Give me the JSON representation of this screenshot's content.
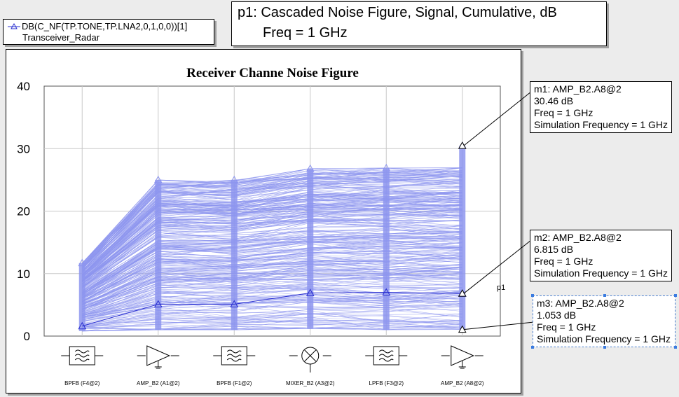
{
  "legend": {
    "expression": "DB(C_NF(TP.TONE,TP.LNA2,0,1,0,0))[1]",
    "document": "Transceiver_Radar"
  },
  "plot_title": {
    "line1": "p1: Cascaded Noise Figure, Signal, Cumulative, dB",
    "line2": "Freq = 1 GHz"
  },
  "colors": {
    "sweep_lines": "#8d95ef",
    "main_trace": "#2a2fd0",
    "grid": "#c8c8c8",
    "background": "#ececec"
  },
  "chart_data": {
    "type": "line",
    "title": "Receiver Channe Noise Figure",
    "ylim": [
      0,
      40
    ],
    "yticks": [
      0,
      10,
      20,
      30,
      40
    ],
    "grid": true,
    "categories": [
      "BPFB (F4@2)",
      "AMP_B2 (A1@2)",
      "BPFB (F1@2)",
      "MIXER_B2 (A3@2)",
      "LPFB (F3@2)",
      "AMP_B2 (A8@2)"
    ],
    "category_icons": [
      "bandpass-filter-icon",
      "amplifier-icon",
      "bandpass-filter-icon",
      "mixer-icon",
      "lowpass-filter-icon",
      "amplifier-icon"
    ],
    "series": [
      {
        "values": [
          1.6,
          5.1,
          5.1,
          6.9,
          7.0,
          6.8
        ]
      }
    ],
    "monte_carlo_band": {
      "min": [
        0.8,
        1.0,
        1.0,
        1.2,
        1.0,
        1.053
      ],
      "max": [
        11.7,
        25.0,
        25.0,
        26.8,
        26.9,
        30.46
      ]
    },
    "trace_label": "p1",
    "markers": [
      {
        "id": "m1",
        "x": "AMP_B2 (A8@2)",
        "y": 30.46,
        "name": "AMP_B2.A8@2",
        "value": "30.46 dB",
        "freq": "Freq = 1 GHz",
        "sim": "Simulation Frequency = 1 GHz"
      },
      {
        "id": "m2",
        "x": "AMP_B2 (A8@2)",
        "y": 6.815,
        "name": "AMP_B2.A8@2",
        "value": "6.815 dB",
        "freq": "Freq = 1 GHz",
        "sim": "Simulation Frequency = 1 GHz"
      },
      {
        "id": "m3",
        "x": "AMP_B2 (A8@2)",
        "y": 1.053,
        "name": "AMP_B2.A8@2",
        "value": "1.053 dB",
        "freq": "Freq = 1 GHz",
        "sim": "Simulation Frequency = 1 GHz"
      }
    ]
  }
}
